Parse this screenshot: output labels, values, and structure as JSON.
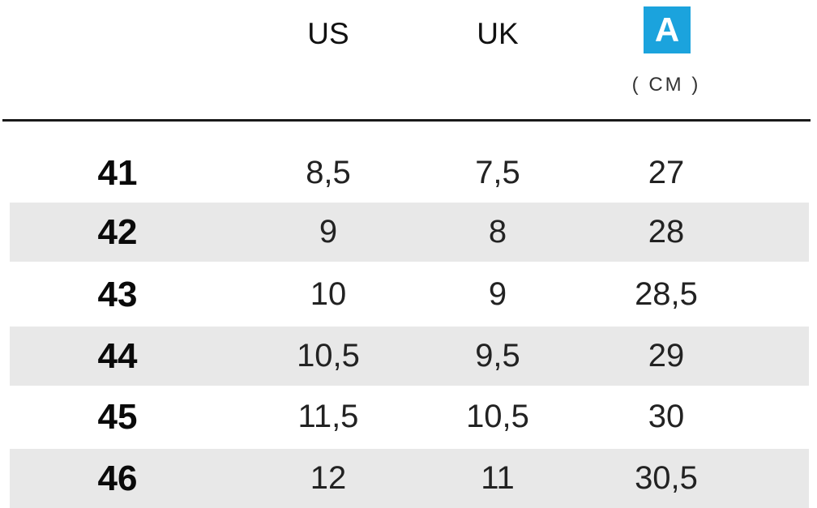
{
  "header": {
    "col_us": "US",
    "col_uk": "UK",
    "badge_letter": "A",
    "unit": "( CM )",
    "badge_color": "#1ba3dd"
  },
  "rows": [
    {
      "eu": "41",
      "us": "8,5",
      "uk": "7,5",
      "cm": "27",
      "shaded": false
    },
    {
      "eu": "42",
      "us": "9",
      "uk": "8",
      "cm": "28",
      "shaded": true
    },
    {
      "eu": "43",
      "us": "10",
      "uk": "9",
      "cm": "28,5",
      "shaded": false
    },
    {
      "eu": "44",
      "us": "10,5",
      "uk": "9,5",
      "cm": "29",
      "shaded": true
    },
    {
      "eu": "45",
      "us": "11,5",
      "uk": "10,5",
      "cm": "30",
      "shaded": false
    },
    {
      "eu": "46",
      "us": "12",
      "uk": "11",
      "cm": "30,5",
      "shaded": true
    }
  ],
  "colors": {
    "row_shade": "#e8e8e8",
    "divider": "#1a1a1a"
  }
}
